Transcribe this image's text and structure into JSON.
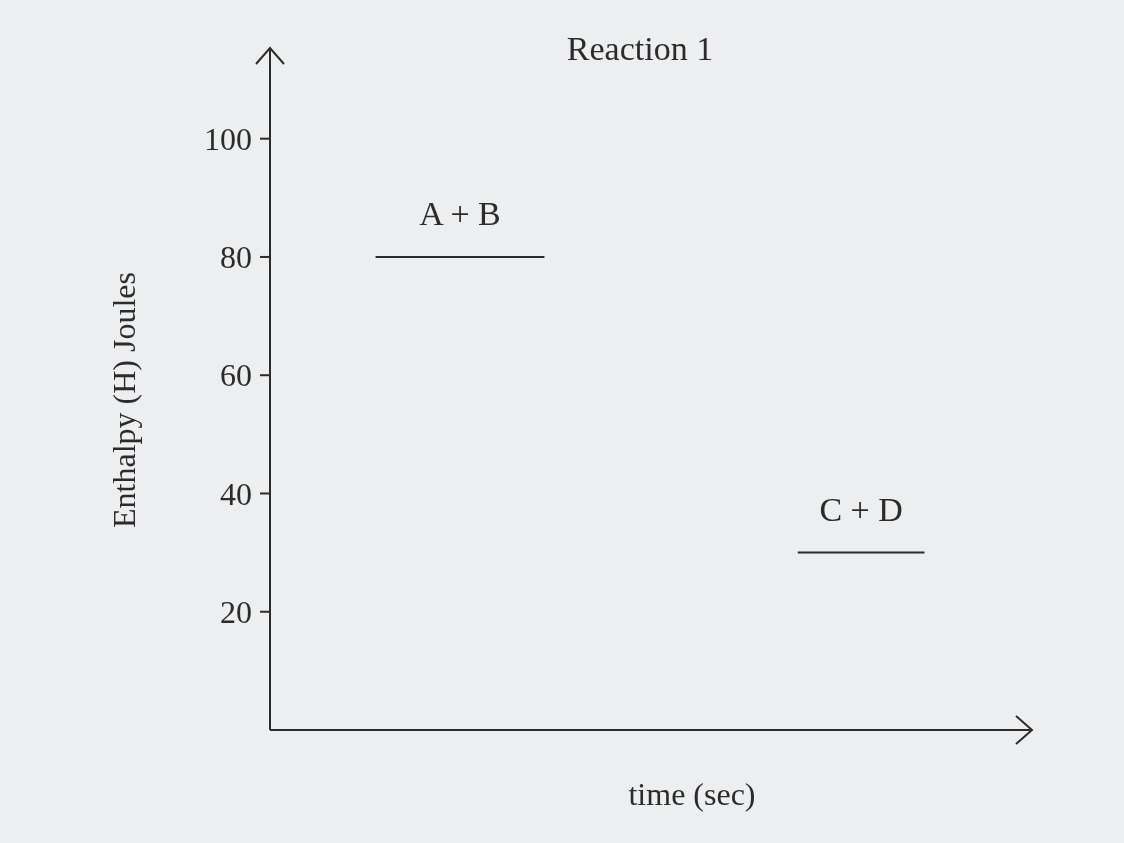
{
  "chart_data": {
    "type": "line",
    "title": "Reaction 1",
    "xlabel": "time (sec)",
    "ylabel": "Enthalpy (H)  Joules",
    "categories": [
      null,
      null,
      null,
      null,
      null,
      null,
      null,
      null,
      null,
      null,
      null,
      null,
      null,
      null,
      null,
      null,
      null,
      null
    ],
    "series": [
      {
        "name": "A + B",
        "color": "#2b2b2b",
        "values": [
          null,
          null,
          80,
          80,
          80,
          80,
          80,
          null,
          null,
          null,
          null,
          null,
          null,
          null,
          null,
          null,
          null,
          null
        ]
      },
      {
        "name": "C + D",
        "color": "#2b2b2b",
        "values": [
          null,
          null,
          null,
          null,
          null,
          null,
          null,
          null,
          null,
          null,
          null,
          null,
          30,
          30,
          30,
          30,
          null,
          null
        ]
      }
    ],
    "ylim": [
      0,
      115
    ],
    "yticks": [
      20,
      40,
      60,
      80,
      100
    ]
  }
}
